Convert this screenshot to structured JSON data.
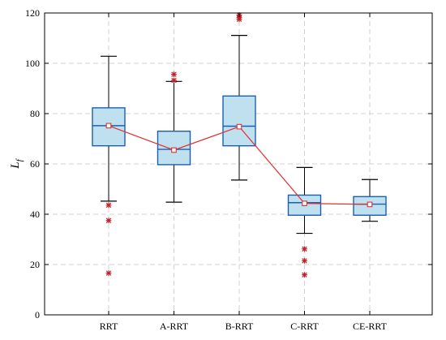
{
  "chart_data": {
    "type": "box",
    "ylabel": "L",
    "ylabel_subscript": "f",
    "ylim": [
      0,
      120
    ],
    "yticks": [
      "0",
      "20",
      "40",
      "60",
      "80",
      "100",
      "120"
    ],
    "grid": true,
    "categories": [
      "RRT",
      "A-RRT",
      "B-RRT",
      "C-RRT",
      "CE-RRT"
    ],
    "boxes": [
      {
        "min": 45.2,
        "q1": 67.2,
        "median": 75.2,
        "q3": 82.3,
        "max": 102.8,
        "mean": 75.2,
        "outliers": [
          43.6,
          37.5,
          16.6
        ]
      },
      {
        "min": 44.8,
        "q1": 59.7,
        "median": 65.8,
        "q3": 73.0,
        "max": 92.8,
        "mean": 65.5,
        "outliers": [
          95.6,
          93.2
        ]
      },
      {
        "min": 53.6,
        "q1": 67.2,
        "median": 75.0,
        "q3": 87.0,
        "max": 111.1,
        "mean": 74.8,
        "outliers": [
          119.2,
          118.2,
          117.5
        ]
      },
      {
        "min": 32.4,
        "q1": 39.6,
        "median": 44.6,
        "q3": 47.6,
        "max": 58.6,
        "mean": 44.3,
        "outliers": [
          26.2,
          21.5,
          15.9
        ]
      },
      {
        "min": 37.2,
        "q1": 39.6,
        "median": 44.0,
        "q3": 47.0,
        "max": 53.8,
        "mean": 43.9,
        "outliers": []
      }
    ],
    "colors": {
      "box_fill": "#bfe1ef",
      "box_edge": "#1a5fb4",
      "whisker": "#000000",
      "mean_line": "#e03030",
      "mean_marker": "#e03030",
      "outlier": "#c0202a",
      "grid": "#d0d0d0"
    }
  }
}
